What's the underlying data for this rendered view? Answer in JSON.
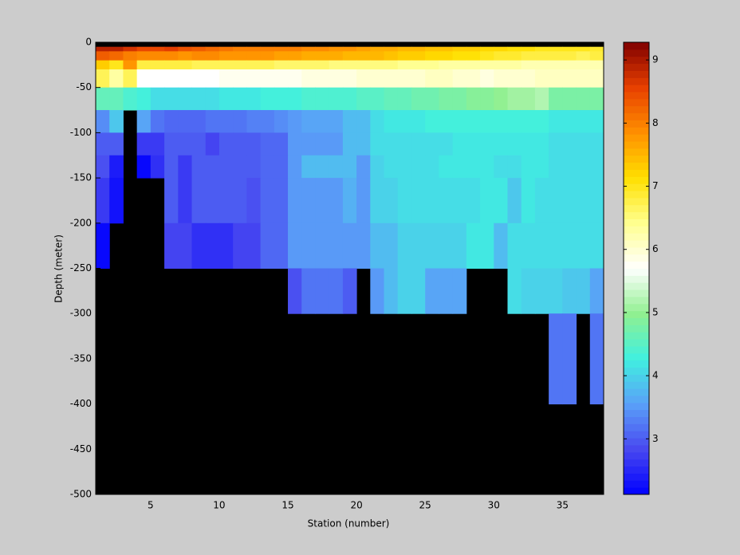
{
  "chart_data": {
    "type": "heatmap",
    "xlabel": "Station (number)",
    "ylabel": "Depth (meter)",
    "xlim": [
      1,
      38
    ],
    "xticks": [
      5,
      10,
      15,
      20,
      25,
      30,
      35
    ],
    "ylim": [
      -500,
      0
    ],
    "yticks": [
      0,
      -50,
      -100,
      -150,
      -200,
      -250,
      -300,
      -350,
      -400,
      -450,
      -500
    ],
    "y_edges": [
      0,
      -5,
      -10,
      -20,
      -30,
      -50,
      -75,
      -100,
      -125,
      -150,
      -200,
      -250,
      -300,
      -400,
      -500
    ],
    "clim": [
      2.12,
      9.28
    ],
    "cticks": [
      3,
      4,
      5,
      6,
      7,
      8,
      9
    ],
    "colormap": [
      "#0000ff",
      "#4848f0",
      "#5aa0f8",
      "#40f0e0",
      "#90f090",
      "#ffffff",
      "#ffff90",
      "#ffe000",
      "#ff9000",
      "#e84000",
      "#800000"
    ],
    "missing_color": "#000000",
    "values": [
      [
        null,
        null,
        null,
        null,
        null,
        null,
        null,
        null,
        null,
        null,
        null,
        null,
        null,
        null,
        null,
        null,
        null,
        null,
        null,
        null,
        null,
        null,
        null,
        null,
        null,
        null,
        null,
        null,
        null,
        null,
        null,
        null,
        null,
        null,
        null,
        null,
        null
      ],
      [
        8.9,
        8.9,
        8.7,
        8.5,
        8.5,
        8.6,
        8.4,
        8.3,
        8.2,
        8.1,
        8.0,
        8.0,
        8.0,
        8.0,
        8.0,
        7.9,
        7.9,
        7.8,
        7.8,
        7.7,
        7.6,
        7.6,
        7.5,
        7.5,
        7.4,
        7.4,
        7.3,
        7.3,
        7.2,
        7.2,
        7.1,
        7.1,
        7.0,
        7.0,
        7.0,
        7.0,
        6.9
      ],
      [
        8.3,
        8.2,
        8.0,
        7.9,
        7.9,
        7.9,
        7.8,
        7.9,
        7.9,
        7.8,
        7.8,
        7.8,
        7.8,
        7.7,
        7.7,
        7.6,
        7.6,
        7.6,
        7.5,
        7.5,
        7.5,
        7.4,
        7.3,
        7.3,
        7.2,
        7.2,
        7.1,
        7.1,
        7.0,
        6.9,
        6.9,
        6.8,
        6.8,
        6.8,
        6.8,
        6.7,
        6.8
      ],
      [
        7.3,
        7.0,
        7.8,
        6.8,
        6.8,
        6.8,
        6.8,
        6.7,
        6.7,
        6.7,
        6.7,
        6.7,
        6.7,
        6.6,
        6.6,
        6.6,
        6.6,
        6.5,
        6.5,
        6.5,
        6.5,
        6.5,
        6.4,
        6.4,
        6.4,
        6.3,
        6.3,
        6.3,
        6.3,
        6.3,
        6.3,
        6.2,
        6.2,
        6.2,
        6.2,
        6.2,
        6.2
      ],
      [
        6.7,
        6.3,
        6.7,
        5.7,
        5.7,
        5.7,
        5.7,
        5.7,
        5.7,
        5.8,
        5.8,
        5.8,
        5.8,
        5.8,
        5.8,
        5.9,
        5.9,
        5.9,
        5.9,
        6.0,
        6.0,
        6.0,
        6.0,
        6.0,
        6.1,
        6.1,
        6.0,
        6.0,
        5.9,
        6.0,
        6.0,
        6.0,
        6.1,
        6.1,
        6.1,
        6.1,
        6.1
      ],
      [
        4.6,
        4.6,
        4.4,
        4.3,
        4.1,
        4.1,
        4.1,
        4.1,
        4.1,
        4.2,
        4.2,
        4.2,
        4.3,
        4.3,
        4.3,
        4.4,
        4.4,
        4.4,
        4.4,
        4.5,
        4.5,
        4.6,
        4.6,
        4.7,
        4.7,
        4.8,
        4.8,
        4.9,
        4.9,
        5.0,
        5.1,
        5.1,
        5.2,
        4.8,
        4.8,
        4.8,
        4.8
      ],
      [
        3.4,
        3.9,
        null,
        3.6,
        3.2,
        3.1,
        3.1,
        3.1,
        3.2,
        3.2,
        3.2,
        3.3,
        3.3,
        3.4,
        3.5,
        3.6,
        3.6,
        3.6,
        3.8,
        3.8,
        4.1,
        4.2,
        4.2,
        4.2,
        4.3,
        4.3,
        4.3,
        4.3,
        4.3,
        4.3,
        4.3,
        4.3,
        4.3,
        4.2,
        4.2,
        4.2,
        4.2
      ],
      [
        3.0,
        3.0,
        null,
        2.7,
        2.7,
        3.0,
        3.0,
        3.0,
        2.8,
        3.0,
        3.0,
        3.0,
        3.1,
        3.1,
        3.5,
        3.5,
        3.5,
        3.5,
        3.8,
        3.8,
        4.1,
        4.1,
        4.1,
        4.1,
        4.1,
        4.1,
        4.2,
        4.2,
        4.2,
        4.2,
        4.2,
        4.2,
        4.2,
        4.1,
        4.1,
        4.1,
        4.1
      ],
      [
        2.9,
        2.4,
        null,
        2.2,
        2.6,
        3.0,
        2.7,
        3.0,
        3.0,
        3.0,
        3.0,
        3.0,
        3.1,
        3.1,
        3.5,
        3.8,
        3.8,
        3.8,
        3.8,
        3.5,
        4.0,
        4.1,
        4.1,
        4.1,
        4.1,
        4.2,
        4.2,
        4.2,
        4.2,
        4.1,
        4.1,
        4.2,
        4.2,
        4.1,
        4.1,
        4.1,
        4.1
      ],
      [
        2.7,
        2.3,
        null,
        null,
        null,
        3.0,
        2.7,
        3.0,
        3.0,
        3.0,
        3.0,
        2.9,
        3.1,
        3.1,
        3.5,
        3.5,
        3.5,
        3.5,
        3.7,
        3.5,
        4.0,
        4.0,
        4.1,
        4.1,
        4.1,
        4.1,
        4.1,
        4.1,
        4.2,
        4.2,
        3.9,
        4.2,
        4.1,
        4.1,
        4.1,
        4.1,
        4.1
      ],
      [
        2.2,
        null,
        null,
        null,
        null,
        2.8,
        2.8,
        2.6,
        2.6,
        2.6,
        2.8,
        2.8,
        3.1,
        3.1,
        3.5,
        3.5,
        3.5,
        3.5,
        3.5,
        3.5,
        3.8,
        3.8,
        4.0,
        4.0,
        4.0,
        4.0,
        4.0,
        4.2,
        4.2,
        3.8,
        4.1,
        4.1,
        4.1,
        4.1,
        4.1,
        4.1,
        4.1
      ],
      [
        null,
        null,
        null,
        null,
        null,
        null,
        null,
        null,
        null,
        null,
        null,
        null,
        null,
        null,
        2.9,
        3.2,
        3.2,
        3.2,
        3.0,
        null,
        3.5,
        3.8,
        4.0,
        4.0,
        3.6,
        3.6,
        3.6,
        null,
        null,
        null,
        4.1,
        4.0,
        4.0,
        4.0,
        3.9,
        3.9,
        3.6
      ],
      [
        null,
        null,
        null,
        null,
        null,
        null,
        null,
        null,
        null,
        null,
        null,
        null,
        null,
        null,
        null,
        null,
        null,
        null,
        null,
        null,
        null,
        null,
        null,
        null,
        null,
        null,
        null,
        null,
        null,
        null,
        null,
        null,
        null,
        3.2,
        3.2,
        null,
        3.2
      ],
      [
        null,
        null,
        null,
        null,
        null,
        null,
        null,
        null,
        null,
        null,
        null,
        null,
        null,
        null,
        null,
        null,
        null,
        null,
        null,
        null,
        null,
        null,
        null,
        null,
        null,
        null,
        null,
        null,
        null,
        null,
        null,
        null,
        null,
        null,
        null,
        null,
        null
      ]
    ]
  }
}
